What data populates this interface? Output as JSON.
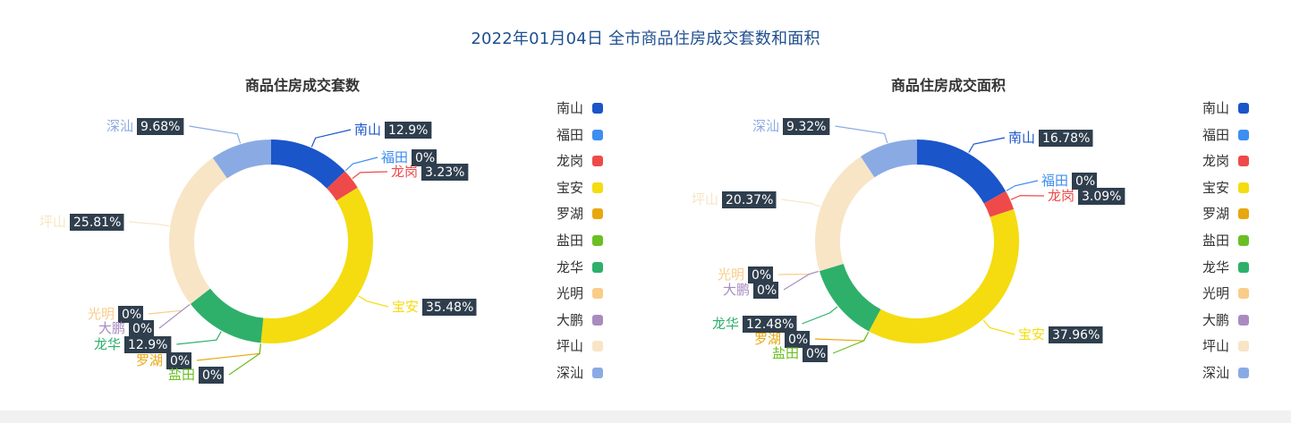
{
  "title": "2022年01月04日 全市商品住房成交套数和面积",
  "colors": {
    "南山": "#1a55c9",
    "福田": "#3d8ef0",
    "龙岗": "#ef4a4a",
    "宝安": "#f4dc10",
    "罗湖": "#e8a70e",
    "盐田": "#6ac022",
    "龙华": "#2eb06a",
    "光明": "#f9cd89",
    "大鹏": "#a88cc0",
    "坪山": "#f8e5c6",
    "深汕": "#8aaae4"
  },
  "chart_data": [
    {
      "type": "pie",
      "title": "商品住房成交套数",
      "categories": [
        "南山",
        "福田",
        "龙岗",
        "宝安",
        "罗湖",
        "盐田",
        "龙华",
        "光明",
        "大鹏",
        "坪山",
        "深汕"
      ],
      "values": [
        12.9,
        0,
        3.23,
        35.48,
        0,
        0,
        12.9,
        0,
        0,
        25.81,
        9.68
      ],
      "labels": [
        "12.9%",
        "0%",
        "3.23%",
        "35.48%",
        "0%",
        "0%",
        "12.9%",
        "0%",
        "0%",
        "25.81%",
        "9.68%"
      ],
      "legend": "right"
    },
    {
      "type": "pie",
      "title": "商品住房成交面积",
      "categories": [
        "南山",
        "福田",
        "龙岗",
        "宝安",
        "罗湖",
        "盐田",
        "龙华",
        "光明",
        "大鹏",
        "坪山",
        "深汕"
      ],
      "values": [
        16.78,
        0,
        3.09,
        37.96,
        0,
        0,
        12.48,
        0,
        0,
        20.37,
        9.32
      ],
      "labels": [
        "16.78%",
        "0%",
        "3.09%",
        "37.96%",
        "0%",
        "0%",
        "12.48%",
        "0%",
        "0%",
        "20.37%",
        "9.32%"
      ],
      "legend": "right"
    }
  ]
}
